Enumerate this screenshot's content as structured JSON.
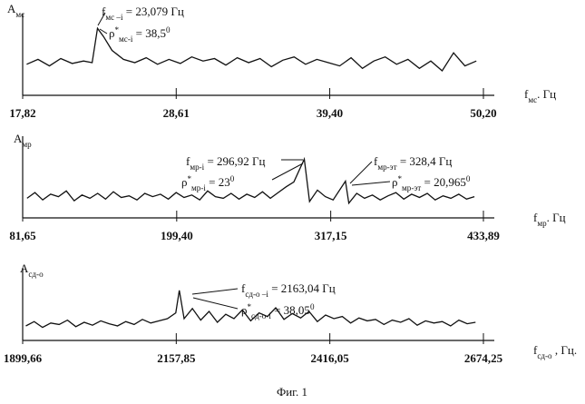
{
  "caption": "Фиг. 1",
  "chart_data": [
    {
      "type": "line",
      "y_label": [
        {
          "t": "A"
        },
        {
          "sub": "мс"
        }
      ],
      "x_label": [
        {
          "t": "f"
        },
        {
          "sub": "мс"
        },
        {
          "t": ". Гц"
        }
      ],
      "xlim": [
        17.82,
        50.2
      ],
      "ylim": [
        0,
        100
      ],
      "xticks": [
        {
          "value": 17.82,
          "label": "17,82"
        },
        {
          "value": 28.61,
          "label": "28,61"
        },
        {
          "value": 39.4,
          "label": "39,40"
        },
        {
          "value": 50.2,
          "label": "50,20"
        }
      ],
      "x": [
        18.1,
        18.9,
        19.7,
        20.5,
        21.3,
        22.1,
        22.7,
        23.079,
        23.5,
        24.1,
        24.9,
        25.7,
        26.5,
        27.3,
        28.1,
        28.9,
        29.7,
        30.5,
        31.3,
        32.1,
        32.9,
        33.7,
        34.5,
        35.3,
        36.1,
        36.9,
        37.7,
        38.5,
        39.3,
        40.1,
        40.9,
        41.7,
        42.5,
        43.3,
        44.1,
        44.9,
        45.7,
        46.5,
        47.3,
        48.1,
        48.9,
        49.7
      ],
      "series": [
        {
          "color": "#111111",
          "values": [
            38,
            44,
            36,
            45,
            39,
            42,
            40,
            82,
            72,
            55,
            44,
            40,
            46,
            38,
            44,
            39,
            47,
            42,
            45,
            37,
            46,
            40,
            45,
            35,
            43,
            47,
            38,
            44,
            40,
            36,
            46,
            33,
            42,
            47,
            38,
            44,
            33,
            42,
            30,
            52,
            36,
            42
          ]
        }
      ],
      "annotations": [
        [
          {
            "t": "f"
          },
          {
            "sub": "мс –i"
          },
          {
            "t": " = 23,079 Гц"
          }
        ],
        [
          {
            "t": "ρ"
          },
          {
            "sup": "*"
          },
          {
            "sub": "мс-i"
          },
          {
            "t": " = 38,5"
          },
          {
            "sup": "0"
          }
        ]
      ]
    },
    {
      "type": "line",
      "y_label": [
        {
          "t": "A"
        },
        {
          "sub": "мр"
        }
      ],
      "x_label": [
        {
          "t": "f"
        },
        {
          "sub": "мр"
        },
        {
          "t": ". Гц"
        }
      ],
      "xlim": [
        81.65,
        433.89
      ],
      "ylim": [
        0,
        100
      ],
      "xticks": [
        {
          "value": 81.65,
          "label": "81,65"
        },
        {
          "value": 199.4,
          "label": "199,40"
        },
        {
          "value": 317.15,
          "label": "317,15"
        },
        {
          "value": 433.89,
          "label": "433,89"
        }
      ],
      "x": [
        85,
        91,
        97,
        103,
        109,
        115,
        121,
        127,
        133,
        139,
        145,
        151,
        157,
        163,
        169,
        175,
        181,
        187,
        193,
        199,
        205,
        211,
        217,
        223,
        229,
        235,
        241,
        247,
        253,
        259,
        265,
        271,
        277,
        283,
        289,
        296.92,
        301,
        307,
        313,
        319,
        328.4,
        331,
        337,
        343,
        349,
        355,
        361,
        367,
        373,
        379,
        385,
        391,
        397,
        403,
        409,
        415,
        421,
        427
      ],
      "series": [
        {
          "color": "#111111",
          "values": [
            24,
            31,
            22,
            29,
            26,
            33,
            21,
            28,
            24,
            30,
            23,
            32,
            25,
            27,
            22,
            30,
            26,
            29,
            23,
            31,
            25,
            28,
            22,
            33,
            26,
            24,
            30,
            23,
            29,
            25,
            32,
            24,
            31,
            38,
            44,
            72,
            20,
            34,
            26,
            22,
            45,
            18,
            30,
            24,
            28,
            22,
            27,
            31,
            23,
            29,
            25,
            30,
            22,
            27,
            24,
            29,
            23,
            26
          ]
        }
      ],
      "annotations": [
        [
          {
            "t": "f"
          },
          {
            "sub": "мр-i"
          },
          {
            "t": " = 296,92 Гц"
          }
        ],
        [
          {
            "t": "ρ"
          },
          {
            "sup": "*"
          },
          {
            "sub": "мр-i"
          },
          {
            "t": " = 23"
          },
          {
            "sup": "0"
          }
        ],
        [
          {
            "t": "f"
          },
          {
            "sub": "мр-эт"
          },
          {
            "t": " = 328,4 Гц"
          }
        ],
        [
          {
            "t": "ρ"
          },
          {
            "sup": "*"
          },
          {
            "sub": "мр-эт"
          },
          {
            "t": " = 20,965"
          },
          {
            "sup": "0"
          }
        ]
      ]
    },
    {
      "type": "line",
      "y_label": [
        {
          "t": "A"
        },
        {
          "sub": "сд-о"
        }
      ],
      "x_label": [
        {
          "t": "f"
        },
        {
          "sub": "сд-о"
        },
        {
          "t": " , Гц."
        }
      ],
      "xlim": [
        1899.66,
        2674.25
      ],
      "ylim": [
        0,
        100
      ],
      "xticks": [
        {
          "value": 1899.66,
          "label": "1899,66"
        },
        {
          "value": 2157.85,
          "label": "2157,85"
        },
        {
          "value": 2416.05,
          "label": "2416,05"
        },
        {
          "value": 2674.25,
          "label": "2674,25"
        }
      ],
      "x": [
        1905,
        1919,
        1933,
        1947,
        1961,
        1975,
        1989,
        2003,
        2017,
        2031,
        2045,
        2059,
        2073,
        2087,
        2101,
        2115,
        2129,
        2143,
        2157,
        2163.04,
        2171,
        2185,
        2199,
        2213,
        2227,
        2241,
        2255,
        2269,
        2283,
        2297,
        2311,
        2325,
        2339,
        2353,
        2367,
        2381,
        2395,
        2409,
        2423,
        2437,
        2451,
        2465,
        2479,
        2493,
        2507,
        2521,
        2535,
        2549,
        2563,
        2577,
        2591,
        2605,
        2619,
        2633,
        2647,
        2661
      ],
      "series": [
        {
          "color": "#111111",
          "values": [
            20,
            26,
            18,
            24,
            22,
            28,
            19,
            25,
            21,
            27,
            23,
            20,
            26,
            22,
            29,
            24,
            27,
            30,
            38,
            69,
            30,
            44,
            28,
            40,
            25,
            36,
            30,
            42,
            27,
            38,
            33,
            45,
            29,
            37,
            31,
            40,
            26,
            35,
            30,
            33,
            24,
            31,
            27,
            29,
            22,
            28,
            25,
            30,
            21,
            27,
            24,
            26,
            20,
            28,
            23,
            25
          ]
        }
      ],
      "annotations": [
        [
          {
            "t": "f"
          },
          {
            "sub": "сд-о –i"
          },
          {
            "t": " = 2163,04 Гц"
          }
        ],
        [
          {
            "t": "ρ"
          },
          {
            "sup": "*"
          },
          {
            "sub": "сд-о-i"
          },
          {
            "t": " = 38,05"
          },
          {
            "sup": "0"
          }
        ]
      ]
    }
  ]
}
